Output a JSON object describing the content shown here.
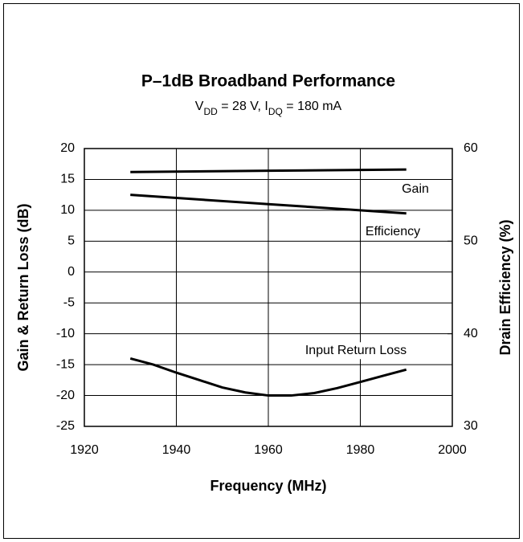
{
  "chart_data": {
    "type": "line",
    "title": "P–1dB Broadband Performance",
    "subtitle": [
      {
        "text": "V"
      },
      {
        "text": "DD",
        "sub": true
      },
      {
        "text": " = 28 V, I"
      },
      {
        "text": "DQ",
        "sub": true
      },
      {
        "text": " = 180 mA"
      }
    ],
    "xlabel": "Frequency (MHz)",
    "ylabel": "Gain & Return Loss (dB)",
    "y2label": "Drain Efficiency (%)",
    "xlim": [
      1920,
      2000
    ],
    "xticks": [
      1920,
      1940,
      1960,
      1980,
      2000
    ],
    "ylim": [
      -25,
      20
    ],
    "yticks": [
      -25,
      -20,
      -15,
      -10,
      -5,
      0,
      5,
      10,
      15,
      20
    ],
    "y2lim": [
      30,
      60
    ],
    "y2ticks": [
      30,
      40,
      50,
      60
    ],
    "grid": true,
    "series": [
      {
        "name": "Gain",
        "color": "#000000",
        "x": [
          1930,
          1960,
          1990
        ],
        "values": [
          16.2,
          16.4,
          16.6
        ]
      },
      {
        "name": "Efficiency",
        "color": "#000000",
        "axis": "y2",
        "x": [
          1930,
          1960,
          1990
        ],
        "values": [
          55.0,
          54.0,
          53.0
        ]
      },
      {
        "name": "Input Return Loss",
        "color": "#000000",
        "x": [
          1930,
          1935,
          1940,
          1945,
          1950,
          1955,
          1960,
          1965,
          1970,
          1975,
          1980,
          1985,
          1990
        ],
        "values": [
          -14,
          -15,
          -16.3,
          -17.5,
          -18.7,
          -19.5,
          -20,
          -20,
          -19.6,
          -18.8,
          -17.8,
          -16.8,
          -15.8
        ]
      }
    ]
  }
}
